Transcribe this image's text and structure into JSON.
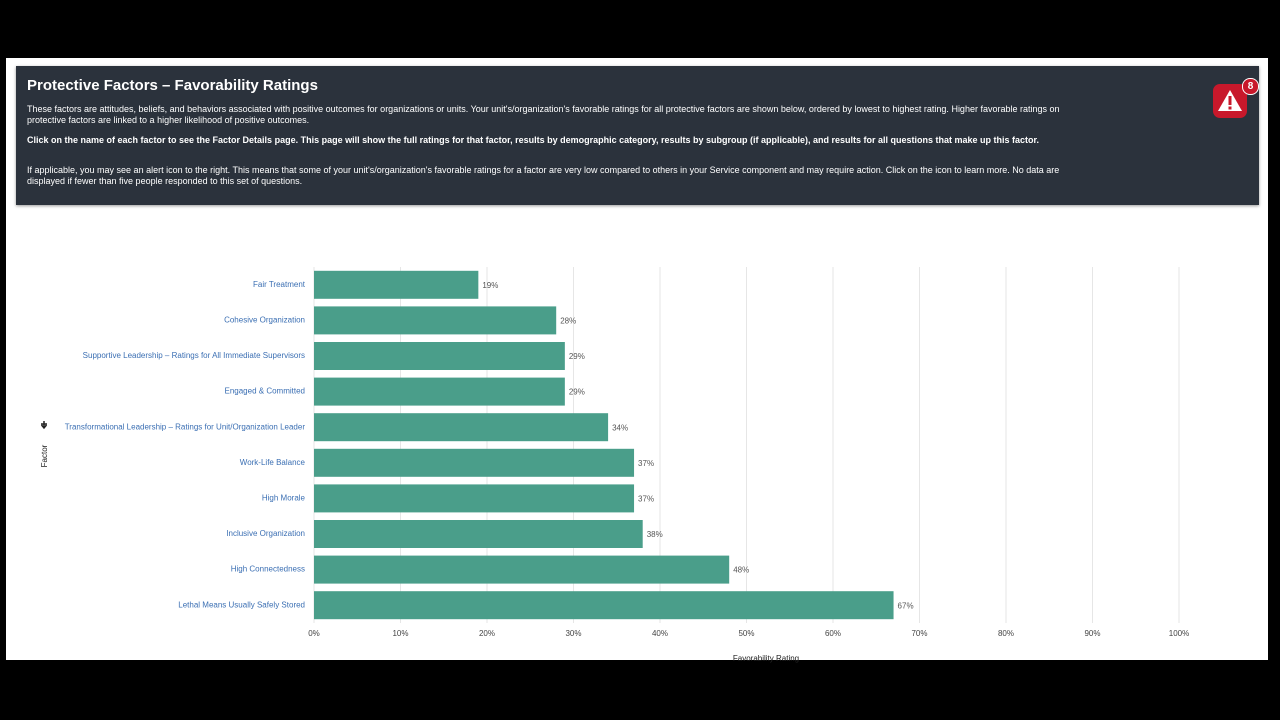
{
  "header": {
    "title": "Protective Factors – Favorability Ratings",
    "paragraphs": [
      "These factors are attitudes, beliefs, and behaviors associated with positive outcomes for organizations or units. Your unit's/organization's favorable ratings for all protective factors are shown below, ordered by lowest to highest rating. Higher favorable ratings on protective factors are linked to a higher likelihood of positive outcomes.",
      "Click on the name of each factor to see the Factor Details page. This page will show the full ratings for that factor, results by demographic category, results by subgroup (if applicable), and results for all questions that make up this factor.",
      "If applicable, you may see an alert icon to the right. This means that some of your unit's/organization's favorable ratings for a factor are very low compared to others in your Service component and may require action. Click on the icon to learn more. No data are displayed if fewer than five people responded to this set of questions."
    ],
    "alert_count": 8
  },
  "chart_data": {
    "type": "hbar",
    "categories": [
      "Fair Treatment",
      "Cohesive Organization",
      "Supportive Leadership – Ratings for All Immediate Supervisors",
      "Engaged & Committed",
      "Transformational Leadership – Ratings for Unit/Organization Leader",
      "Work-Life Balance",
      "High Morale",
      "Inclusive Organization",
      "High Connectedness",
      "Lethal Means Usually Safely Stored"
    ],
    "values": [
      19,
      28,
      29,
      29,
      34,
      37,
      37,
      38,
      48,
      67
    ],
    "value_labels": [
      "19%",
      "28%",
      "29%",
      "29%",
      "34%",
      "37%",
      "37%",
      "38%",
      "48%",
      "67%"
    ],
    "color": "#4a9e8a",
    "xlim": [
      0,
      100
    ],
    "xticks": [
      {
        "value": 0,
        "label": "0%"
      },
      {
        "value": 10,
        "label": "10%"
      },
      {
        "value": 20,
        "label": "20%"
      },
      {
        "value": 30,
        "label": "30%"
      },
      {
        "value": 40,
        "label": "40%"
      },
      {
        "value": 50,
        "label": "50%"
      },
      {
        "value": 60,
        "label": "60%"
      },
      {
        "value": 70,
        "label": "70%"
      },
      {
        "value": 80,
        "label": "80%"
      },
      {
        "value": 90,
        "label": "90%"
      },
      {
        "value": 100,
        "label": "100%"
      }
    ],
    "xlabel": "Favorability Rating",
    "ylabel": "Factor",
    "grid": true
  }
}
